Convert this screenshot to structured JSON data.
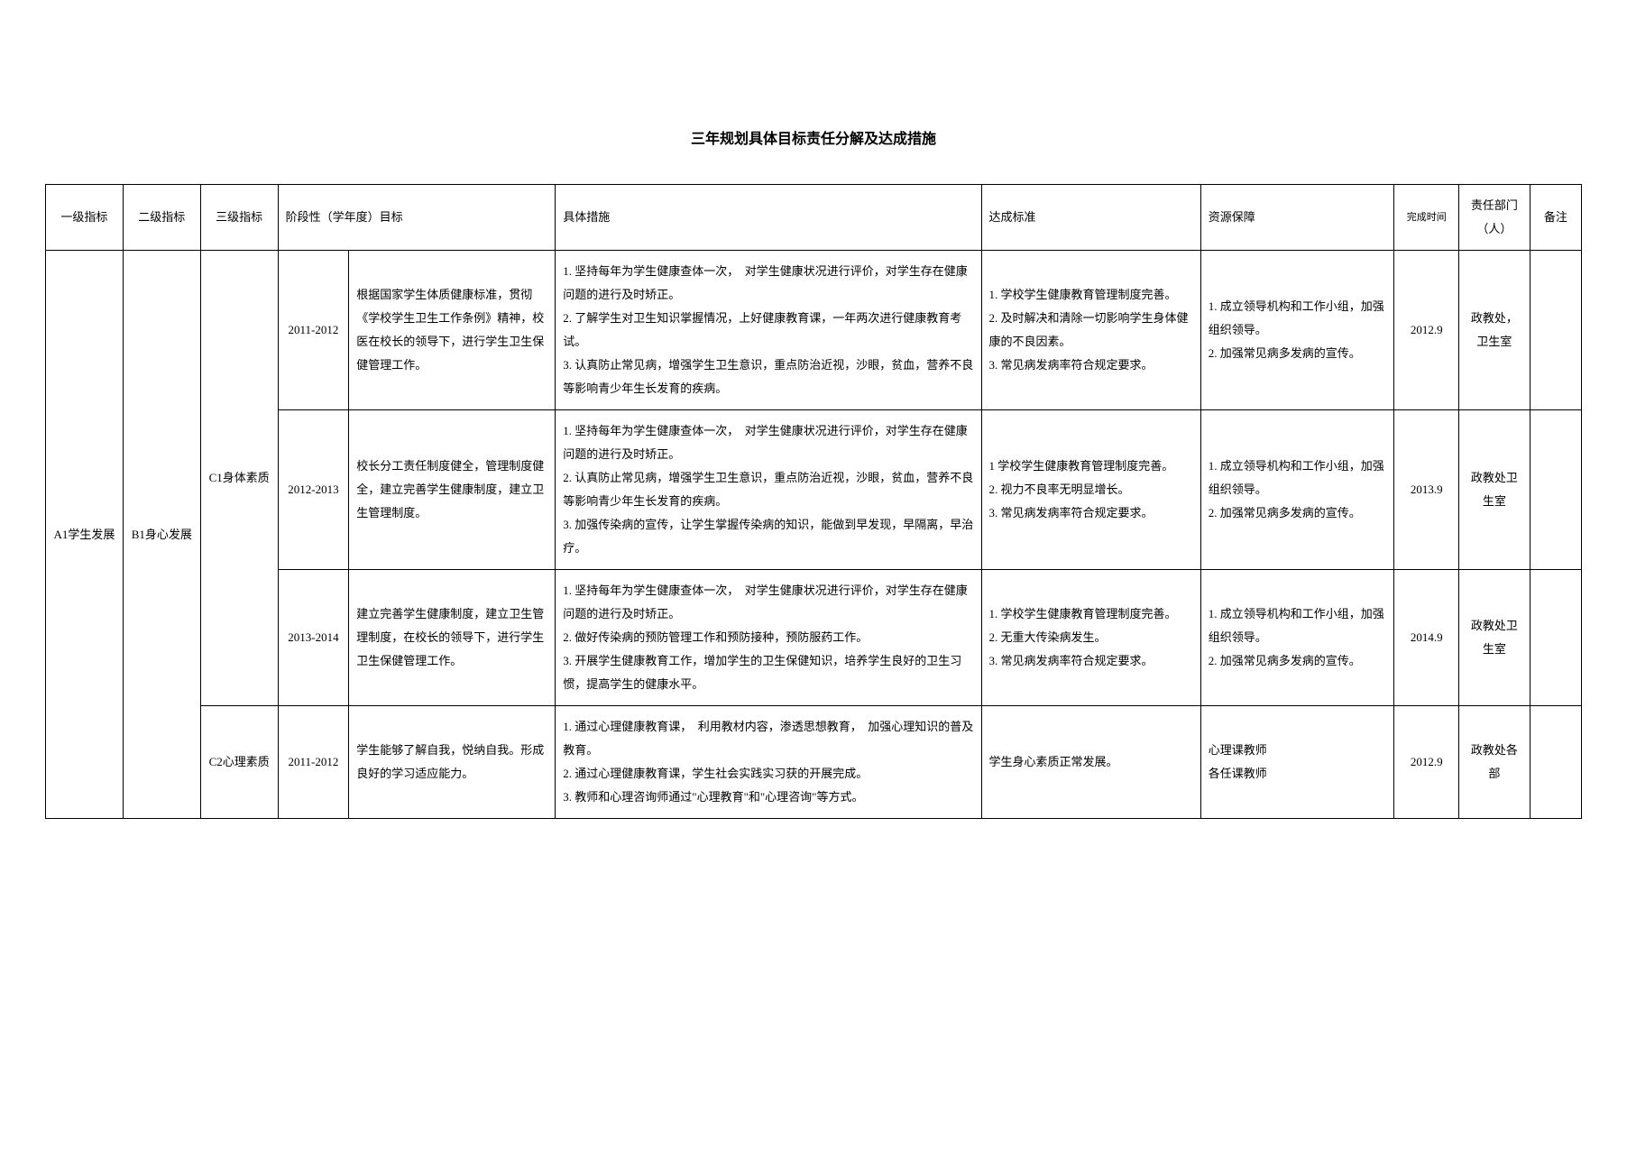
{
  "title": "三年规划具体目标责任分解及达成措施",
  "headers": {
    "col1": "一级指标",
    "col2": "二级指标",
    "col3": "三级指标",
    "col4": "阶段性（学年度）目标",
    "col5": "具体措施",
    "col6": "达成标准",
    "col7": "资源保障",
    "col8": "完成时间",
    "col9": "责任部门（人）",
    "col10": "备注"
  },
  "level1": "A1学生发展",
  "level2": "B1身心发展",
  "level3_c1": "C1身体素质",
  "level3_c2": "C2心理素质",
  "rows": [
    {
      "period": "2011-2012",
      "goal": "根据国家学生体质健康标准，贯彻《学校学生卫生工作条例》精神，校医在校长的领导下，进行学生卫生保健管理工作。",
      "measures": "1. 坚持每年为学生健康查体一次，　对学生健康状况进行评价，对学生存在健康问题的进行及时矫正。\n2. 了解学生对卫生知识掌握情况，上好健康教育课，一年两次进行健康教育考试。\n3. 认真防止常见病，增强学生卫生意识，重点防治近视，沙眼，贫血，营养不良等影响青少年生长发育的疾病。",
      "standard": "1. 学校学生健康教育管理制度完善。\n2. 及时解决和清除一切影响学生身体健康的不良因素。\n3. 常见病发病率符合规定要求。",
      "resource": "1. 成立领导机构和工作小组，加强组织领导。\n2. 加强常见病多发病的宣传。",
      "time": "2012.9",
      "dept": "政教处，卫生室"
    },
    {
      "period": "2012-2013",
      "goal": "校长分工责任制度健全，管理制度健全，建立完善学生健康制度，建立卫生管理制度。",
      "measures": "1. 坚持每年为学生健康查体一次，　对学生健康状况进行评价，对学生存在健康问题的进行及时矫正。\n2. 认真防止常见病，增强学生卫生意识，重点防治近视，沙眼，贫血，营养不良等影响青少年生长发育的疾病。\n3. 加强传染病的宣传，让学生掌握传染病的知识，能做到早发现，早隔离，早治疗。",
      "standard": "1 学校学生健康教育管理制度完善。\n2. 视力不良率无明显增长。\n3. 常见病发病率符合规定要求。",
      "resource": "1. 成立领导机构和工作小组，加强组织领导。\n2. 加强常见病多发病的宣传。",
      "time": "2013.9",
      "dept": "政教处卫生室"
    },
    {
      "period": "2013-2014",
      "goal": "建立完善学生健康制度，建立卫生管理制度，在校长的领导下，进行学生卫生保健管理工作。",
      "measures": "1. 坚持每年为学生健康查体一次，　对学生健康状况进行评价，对学生存在健康问题的进行及时矫正。\n2. 做好传染病的预防管理工作和预防接种，预防服药工作。\n3. 开展学生健康教育工作，增加学生的卫生保健知识，培养学生良好的卫生习惯，提高学生的健康水平。",
      "standard": "1. 学校学生健康教育管理制度完善。\n2. 无重大传染病发生。\n3. 常见病发病率符合规定要求。",
      "resource": "1. 成立领导机构和工作小组，加强组织领导。\n2. 加强常见病多发病的宣传。",
      "time": "2014.9",
      "dept": "政教处卫生室"
    },
    {
      "period": "2011-2012",
      "goal": "学生能够了解自我，悦纳自我。形成良好的学习适应能力。",
      "measures": "1.  通过心理健康教育课，　利用教材内容，渗透思想教育，　加强心理知识的普及教育。\n2.  通过心理健康教育课，学生社会实践实习获的开展完成。\n3.  教师和心理咨询师通过\"心理教育\"和\"心理咨询\"等方式。",
      "standard": "学生身心素质正常发展。",
      "resource": "心理课教师\n各任课教师",
      "time": "2012.9",
      "dept": "政教处各部"
    }
  ]
}
